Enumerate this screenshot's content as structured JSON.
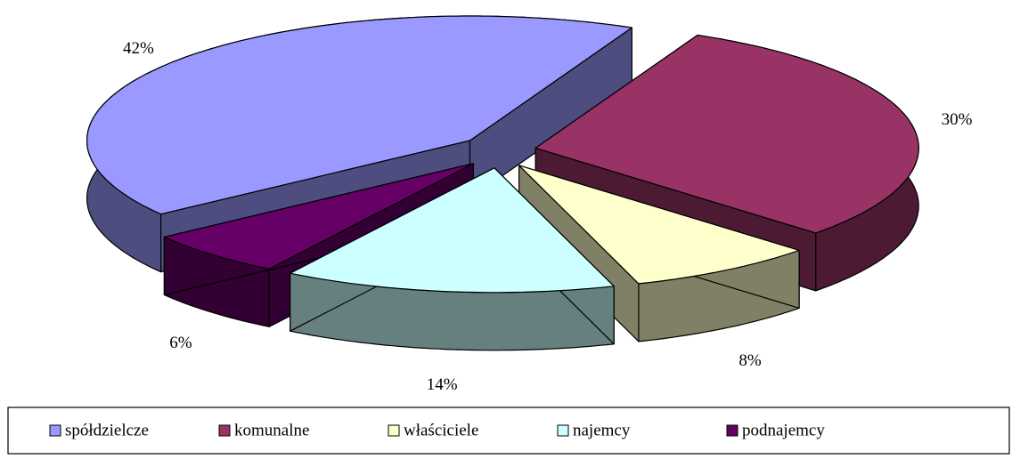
{
  "chart_data": {
    "type": "pie3d",
    "categories": [
      "spółdzielcze",
      "komunalne",
      "właściciele",
      "najemcy",
      "podnajemcy"
    ],
    "values": [
      42,
      30,
      8,
      14,
      6
    ],
    "value_labels": [
      "42%",
      "30%",
      "8%",
      "14%",
      "6%"
    ],
    "colors": [
      "#9999ff",
      "#993366",
      "#ffffcc",
      "#ccffff",
      "#660066"
    ],
    "legend": "bottom"
  }
}
